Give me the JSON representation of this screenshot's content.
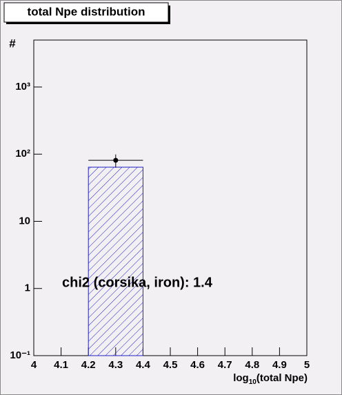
{
  "chart_data": {
    "type": "histogram",
    "title": "total Npe distribution",
    "ylabel": "#",
    "xlabel": [
      "log",
      "10",
      "(total Npe)"
    ],
    "annotation": "chi2 (corsika, iron): 1.4",
    "log_y": true,
    "bins": [
      4.2,
      4.4
    ],
    "values": [
      64
    ],
    "color": "#2020c0",
    "points": {
      "x": [
        4.3
      ],
      "values": [
        81
      ],
      "errors": [
        18
      ],
      "color": "#000000"
    },
    "xlim": [
      4,
      5
    ],
    "xticks": [
      4,
      4.1,
      4.2,
      4.3,
      4.4,
      4.5,
      4.6,
      4.7,
      4.8,
      4.9,
      5
    ],
    "ylim": [
      0.1,
      5000
    ],
    "yticks": [
      {
        "value": 0.1,
        "label": "10⁻¹"
      },
      1,
      10,
      {
        "value": 100,
        "label": "10²"
      },
      {
        "value": 1000,
        "label": "10³"
      }
    ]
  }
}
